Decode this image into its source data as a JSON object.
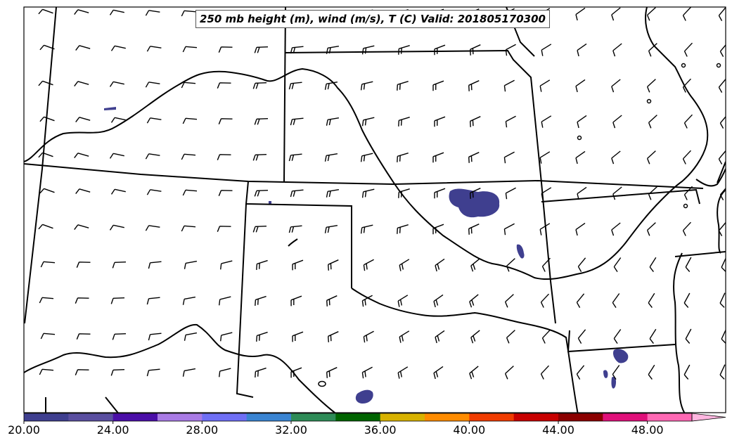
{
  "title": "250 mb height (m), wind (m/s), T (C) Valid: 201805170300",
  "colorbar": {
    "ticks": [
      "20.00",
      "24.00",
      "28.00",
      "32.00",
      "36.00",
      "40.00",
      "44.00",
      "48.00"
    ],
    "colors": [
      "#3f3f8f",
      "#5a4fa0",
      "#4b0fa8",
      "#a97be5",
      "#6f6ff5",
      "#3a84d2",
      "#2e8b57",
      "#006400",
      "#d8b200",
      "#ff8c00",
      "#f03c00",
      "#c80000",
      "#8b0000",
      "#e0107a",
      "#ff69b4",
      "#ffb6e0"
    ],
    "extend": "max"
  },
  "shading_color": "#3f3f8f"
}
